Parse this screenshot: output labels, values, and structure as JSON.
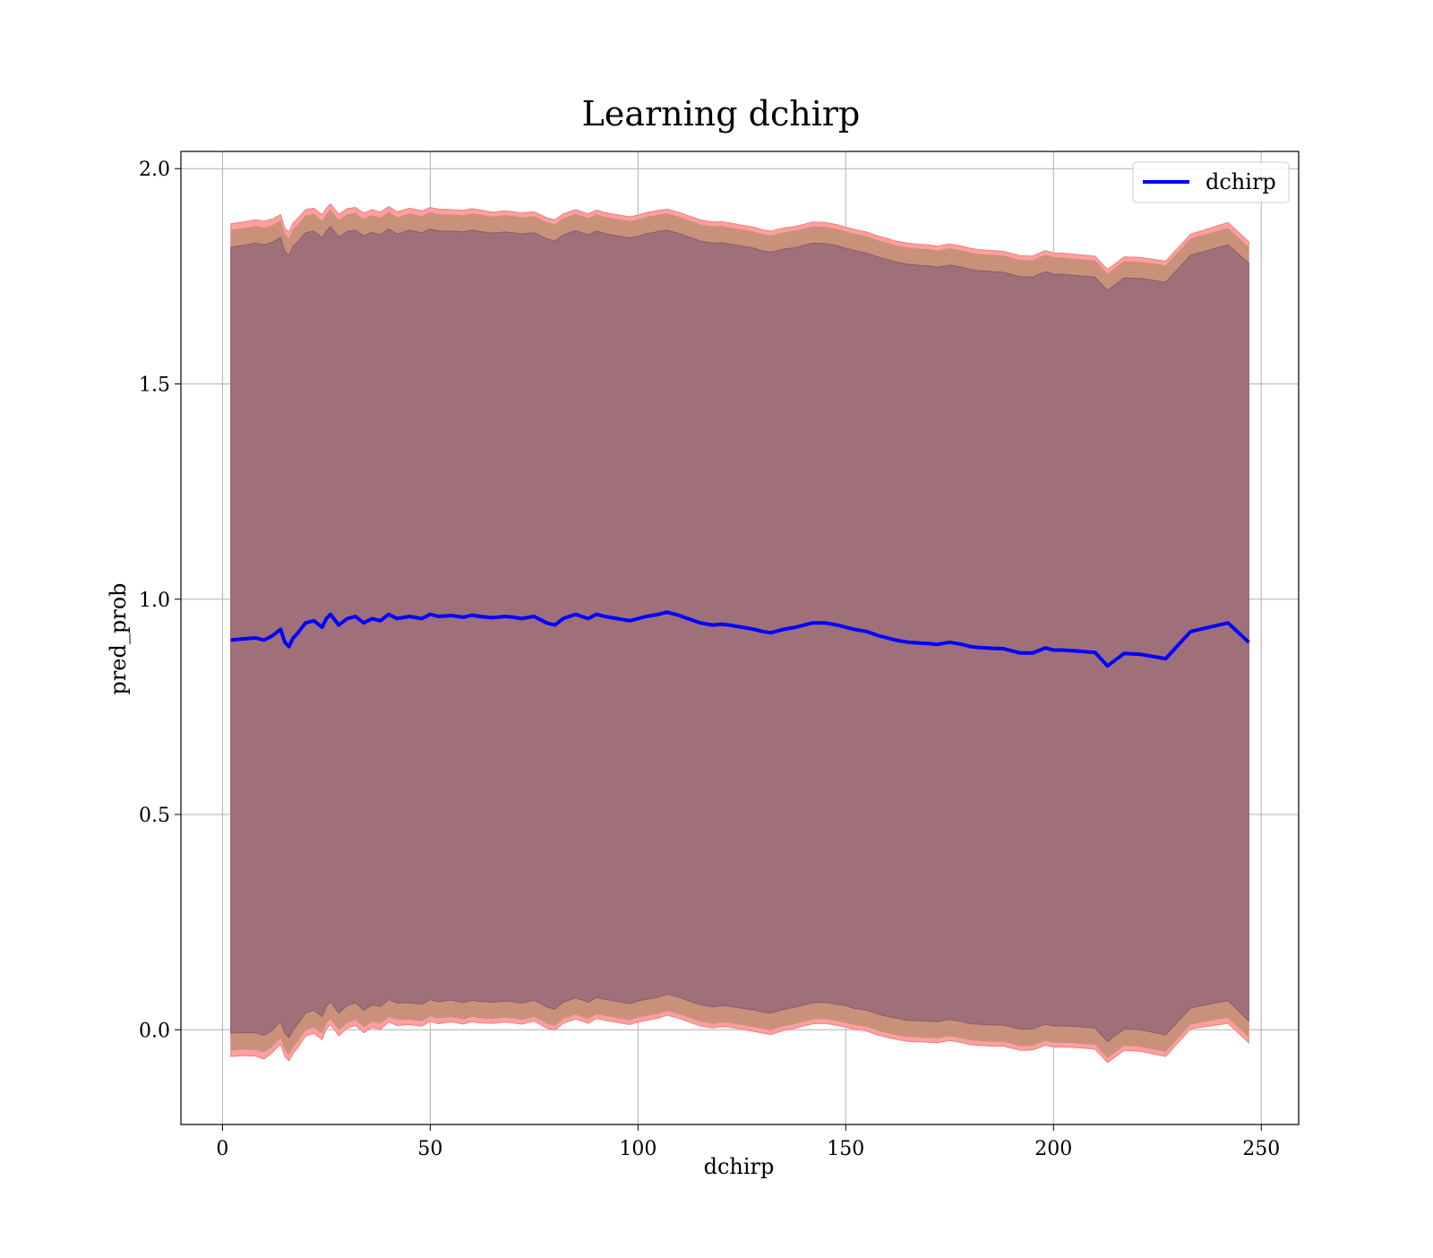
{
  "chart_data": {
    "type": "line",
    "title": "Learning dchirp",
    "xlabel": "dchirp",
    "ylabel": "pred_prob",
    "xlim": [
      -10,
      259
    ],
    "ylim": [
      -0.22,
      2.04
    ],
    "xticks": [
      0,
      50,
      100,
      150,
      200,
      250
    ],
    "xtick_labels": [
      "0",
      "50",
      "100",
      "150",
      "200",
      "250"
    ],
    "yticks": [
      0.0,
      0.5,
      1.0,
      1.5,
      2.0
    ],
    "ytick_labels": [
      "0.0",
      "0.5",
      "1.0",
      "1.5",
      "2.0"
    ],
    "grid": true,
    "legend": {
      "position": "top-right",
      "entries": [
        "dchirp"
      ]
    },
    "colors": {
      "line": "#0000ff",
      "outer_band": "#ff9f9f",
      "middle_band": "#c9917a",
      "inner_band": "#a0707a",
      "grid": "#b0b0b0"
    },
    "x": [
      2,
      5,
      8,
      10,
      12,
      14,
      15,
      16,
      17,
      18,
      20,
      22,
      24,
      25,
      26,
      28,
      30,
      32,
      34,
      36,
      38,
      40,
      42,
      45,
      48,
      50,
      52,
      55,
      58,
      60,
      62,
      65,
      68,
      70,
      72,
      75,
      78,
      80,
      82,
      85,
      88,
      90,
      92,
      95,
      98,
      100,
      102,
      105,
      107,
      110,
      112,
      115,
      118,
      120,
      122,
      125,
      128,
      130,
      132,
      135,
      138,
      140,
      142,
      145,
      148,
      150,
      152,
      155,
      158,
      160,
      162,
      165,
      168,
      170,
      172,
      175,
      178,
      180,
      182,
      185,
      188,
      190,
      192,
      195,
      198,
      200,
      202,
      205,
      210,
      213,
      217,
      221,
      227,
      233,
      242,
      247
    ],
    "series": [
      {
        "name": "dchirp",
        "values": [
          0.905,
          0.908,
          0.91,
          0.905,
          0.915,
          0.93,
          0.9,
          0.89,
          0.91,
          0.92,
          0.945,
          0.95,
          0.935,
          0.955,
          0.965,
          0.94,
          0.955,
          0.96,
          0.945,
          0.955,
          0.95,
          0.965,
          0.955,
          0.96,
          0.955,
          0.965,
          0.96,
          0.962,
          0.958,
          0.963,
          0.96,
          0.957,
          0.96,
          0.958,
          0.955,
          0.96,
          0.945,
          0.94,
          0.955,
          0.965,
          0.955,
          0.965,
          0.96,
          0.955,
          0.95,
          0.955,
          0.96,
          0.965,
          0.97,
          0.962,
          0.955,
          0.945,
          0.94,
          0.942,
          0.94,
          0.935,
          0.93,
          0.925,
          0.922,
          0.93,
          0.935,
          0.94,
          0.945,
          0.945,
          0.94,
          0.935,
          0.93,
          0.925,
          0.915,
          0.91,
          0.905,
          0.9,
          0.898,
          0.897,
          0.895,
          0.9,
          0.895,
          0.89,
          0.888,
          0.886,
          0.885,
          0.88,
          0.875,
          0.875,
          0.887,
          0.882,
          0.882,
          0.88,
          0.876,
          0.845,
          0.874,
          0.872,
          0.862,
          0.925,
          0.945,
          0.9
        ]
      }
    ],
    "bands": {
      "outer_upper": [
        1.872,
        1.876,
        1.881,
        1.878,
        1.883,
        1.893,
        1.862,
        1.852,
        1.875,
        1.883,
        1.905,
        1.908,
        1.893,
        1.908,
        1.918,
        1.894,
        1.907,
        1.91,
        1.897,
        1.905,
        1.899,
        1.912,
        1.9,
        1.908,
        1.902,
        1.91,
        1.906,
        1.905,
        1.903,
        1.907,
        1.904,
        1.899,
        1.902,
        1.9,
        1.897,
        1.9,
        1.886,
        1.881,
        1.895,
        1.905,
        1.895,
        1.904,
        1.898,
        1.893,
        1.888,
        1.892,
        1.898,
        1.903,
        1.906,
        1.898,
        1.891,
        1.881,
        1.876,
        1.877,
        1.874,
        1.869,
        1.864,
        1.858,
        1.855,
        1.862,
        1.866,
        1.871,
        1.876,
        1.875,
        1.87,
        1.864,
        1.859,
        1.853,
        1.843,
        1.838,
        1.832,
        1.827,
        1.824,
        1.823,
        1.82,
        1.825,
        1.82,
        1.815,
        1.812,
        1.81,
        1.808,
        1.803,
        1.798,
        1.797,
        1.81,
        1.804,
        1.804,
        1.801,
        1.797,
        1.766,
        1.795,
        1.794,
        1.785,
        1.848,
        1.875,
        1.83
      ],
      "middle_upper": [
        1.858,
        1.862,
        1.867,
        1.863,
        1.869,
        1.88,
        1.848,
        1.838,
        1.86,
        1.869,
        1.891,
        1.895,
        1.879,
        1.895,
        1.905,
        1.881,
        1.894,
        1.897,
        1.884,
        1.892,
        1.886,
        1.9,
        1.887,
        1.896,
        1.89,
        1.899,
        1.894,
        1.894,
        1.892,
        1.896,
        1.893,
        1.889,
        1.892,
        1.89,
        1.887,
        1.89,
        1.876,
        1.871,
        1.885,
        1.895,
        1.885,
        1.894,
        1.888,
        1.883,
        1.878,
        1.882,
        1.888,
        1.893,
        1.896,
        1.888,
        1.881,
        1.871,
        1.866,
        1.867,
        1.864,
        1.859,
        1.854,
        1.848,
        1.845,
        1.852,
        1.856,
        1.861,
        1.866,
        1.865,
        1.86,
        1.854,
        1.849,
        1.843,
        1.833,
        1.828,
        1.822,
        1.817,
        1.814,
        1.813,
        1.81,
        1.815,
        1.81,
        1.805,
        1.802,
        1.8,
        1.798,
        1.793,
        1.788,
        1.787,
        1.8,
        1.794,
        1.794,
        1.791,
        1.787,
        1.756,
        1.785,
        1.784,
        1.775,
        1.838,
        1.862,
        1.818
      ],
      "inner_upper": [
        1.818,
        1.822,
        1.827,
        1.823,
        1.829,
        1.84,
        1.808,
        1.798,
        1.82,
        1.829,
        1.851,
        1.855,
        1.839,
        1.855,
        1.865,
        1.841,
        1.854,
        1.857,
        1.844,
        1.852,
        1.846,
        1.86,
        1.848,
        1.857,
        1.851,
        1.86,
        1.855,
        1.855,
        1.853,
        1.857,
        1.854,
        1.85,
        1.853,
        1.851,
        1.848,
        1.851,
        1.837,
        1.832,
        1.846,
        1.856,
        1.846,
        1.855,
        1.849,
        1.844,
        1.839,
        1.843,
        1.849,
        1.854,
        1.857,
        1.849,
        1.842,
        1.832,
        1.827,
        1.828,
        1.825,
        1.82,
        1.815,
        1.809,
        1.806,
        1.813,
        1.817,
        1.822,
        1.827,
        1.826,
        1.821,
        1.815,
        1.81,
        1.804,
        1.794,
        1.789,
        1.783,
        1.778,
        1.775,
        1.774,
        1.771,
        1.776,
        1.771,
        1.766,
        1.763,
        1.761,
        1.759,
        1.754,
        1.749,
        1.748,
        1.761,
        1.755,
        1.755,
        1.752,
        1.748,
        1.717,
        1.746,
        1.745,
        1.736,
        1.799,
        1.823,
        1.78
      ],
      "inner_lower": [
        -0.008,
        -0.006,
        -0.007,
        -0.013,
        -0.001,
        0.02,
        -0.008,
        -0.018,
        0.0,
        0.011,
        0.039,
        0.045,
        0.031,
        0.055,
        0.065,
        0.039,
        0.056,
        0.063,
        0.046,
        0.058,
        0.054,
        0.07,
        0.062,
        0.063,
        0.059,
        0.07,
        0.065,
        0.069,
        0.063,
        0.069,
        0.066,
        0.064,
        0.067,
        0.065,
        0.062,
        0.069,
        0.053,
        0.048,
        0.064,
        0.074,
        0.064,
        0.075,
        0.071,
        0.066,
        0.061,
        0.067,
        0.071,
        0.076,
        0.083,
        0.075,
        0.068,
        0.058,
        0.053,
        0.056,
        0.055,
        0.05,
        0.046,
        0.041,
        0.039,
        0.047,
        0.053,
        0.058,
        0.063,
        0.064,
        0.059,
        0.056,
        0.05,
        0.046,
        0.036,
        0.031,
        0.027,
        0.022,
        0.021,
        0.02,
        0.019,
        0.024,
        0.019,
        0.014,
        0.013,
        0.011,
        0.011,
        0.006,
        0.001,
        0.002,
        0.013,
        0.009,
        0.009,
        0.008,
        0.004,
        -0.027,
        0.002,
        0.0,
        -0.012,
        0.051,
        0.068,
        0.02
      ],
      "middle_lower": [
        -0.048,
        -0.046,
        -0.047,
        -0.053,
        -0.039,
        -0.02,
        -0.048,
        -0.058,
        -0.04,
        -0.029,
        -0.001,
        0.005,
        -0.009,
        0.015,
        0.025,
        -0.001,
        0.016,
        0.023,
        0.006,
        0.018,
        0.014,
        0.03,
        0.023,
        0.024,
        0.02,
        0.031,
        0.026,
        0.03,
        0.024,
        0.03,
        0.027,
        0.025,
        0.028,
        0.026,
        0.023,
        0.03,
        0.014,
        0.009,
        0.025,
        0.035,
        0.025,
        0.036,
        0.032,
        0.027,
        0.022,
        0.028,
        0.032,
        0.037,
        0.044,
        0.036,
        0.029,
        0.019,
        0.014,
        0.017,
        0.016,
        0.011,
        0.006,
        0.002,
        -0.001,
        0.008,
        0.014,
        0.019,
        0.024,
        0.025,
        0.02,
        0.016,
        0.011,
        0.007,
        -0.003,
        -0.008,
        -0.012,
        -0.017,
        -0.018,
        -0.019,
        -0.02,
        -0.015,
        -0.02,
        -0.025,
        -0.026,
        -0.028,
        -0.028,
        -0.033,
        -0.038,
        -0.037,
        -0.026,
        -0.03,
        -0.03,
        -0.031,
        -0.035,
        -0.066,
        -0.037,
        -0.04,
        -0.051,
        0.012,
        0.028,
        -0.018
      ],
      "outer_lower": [
        -0.062,
        -0.06,
        -0.061,
        -0.068,
        -0.053,
        -0.033,
        -0.062,
        -0.072,
        -0.055,
        -0.043,
        -0.015,
        -0.008,
        -0.023,
        0.002,
        0.012,
        -0.014,
        0.003,
        0.01,
        -0.007,
        0.005,
        0.001,
        0.018,
        0.01,
        0.012,
        0.008,
        0.02,
        0.014,
        0.019,
        0.013,
        0.019,
        0.016,
        0.015,
        0.018,
        0.016,
        0.013,
        0.02,
        0.004,
        -0.001,
        0.015,
        0.025,
        0.015,
        0.026,
        0.022,
        0.017,
        0.012,
        0.018,
        0.022,
        0.027,
        0.034,
        0.026,
        0.019,
        0.009,
        0.004,
        0.007,
        0.006,
        0.001,
        -0.004,
        -0.008,
        -0.011,
        -0.002,
        0.004,
        0.009,
        0.014,
        0.015,
        0.01,
        0.006,
        0.001,
        -0.003,
        -0.013,
        -0.018,
        -0.022,
        -0.027,
        -0.028,
        -0.029,
        -0.03,
        -0.025,
        -0.03,
        -0.035,
        -0.036,
        -0.038,
        -0.038,
        -0.043,
        -0.048,
        -0.047,
        -0.036,
        -0.04,
        -0.04,
        -0.041,
        -0.045,
        -0.076,
        -0.048,
        -0.05,
        -0.062,
        0.002,
        0.015,
        -0.03
      ]
    }
  }
}
